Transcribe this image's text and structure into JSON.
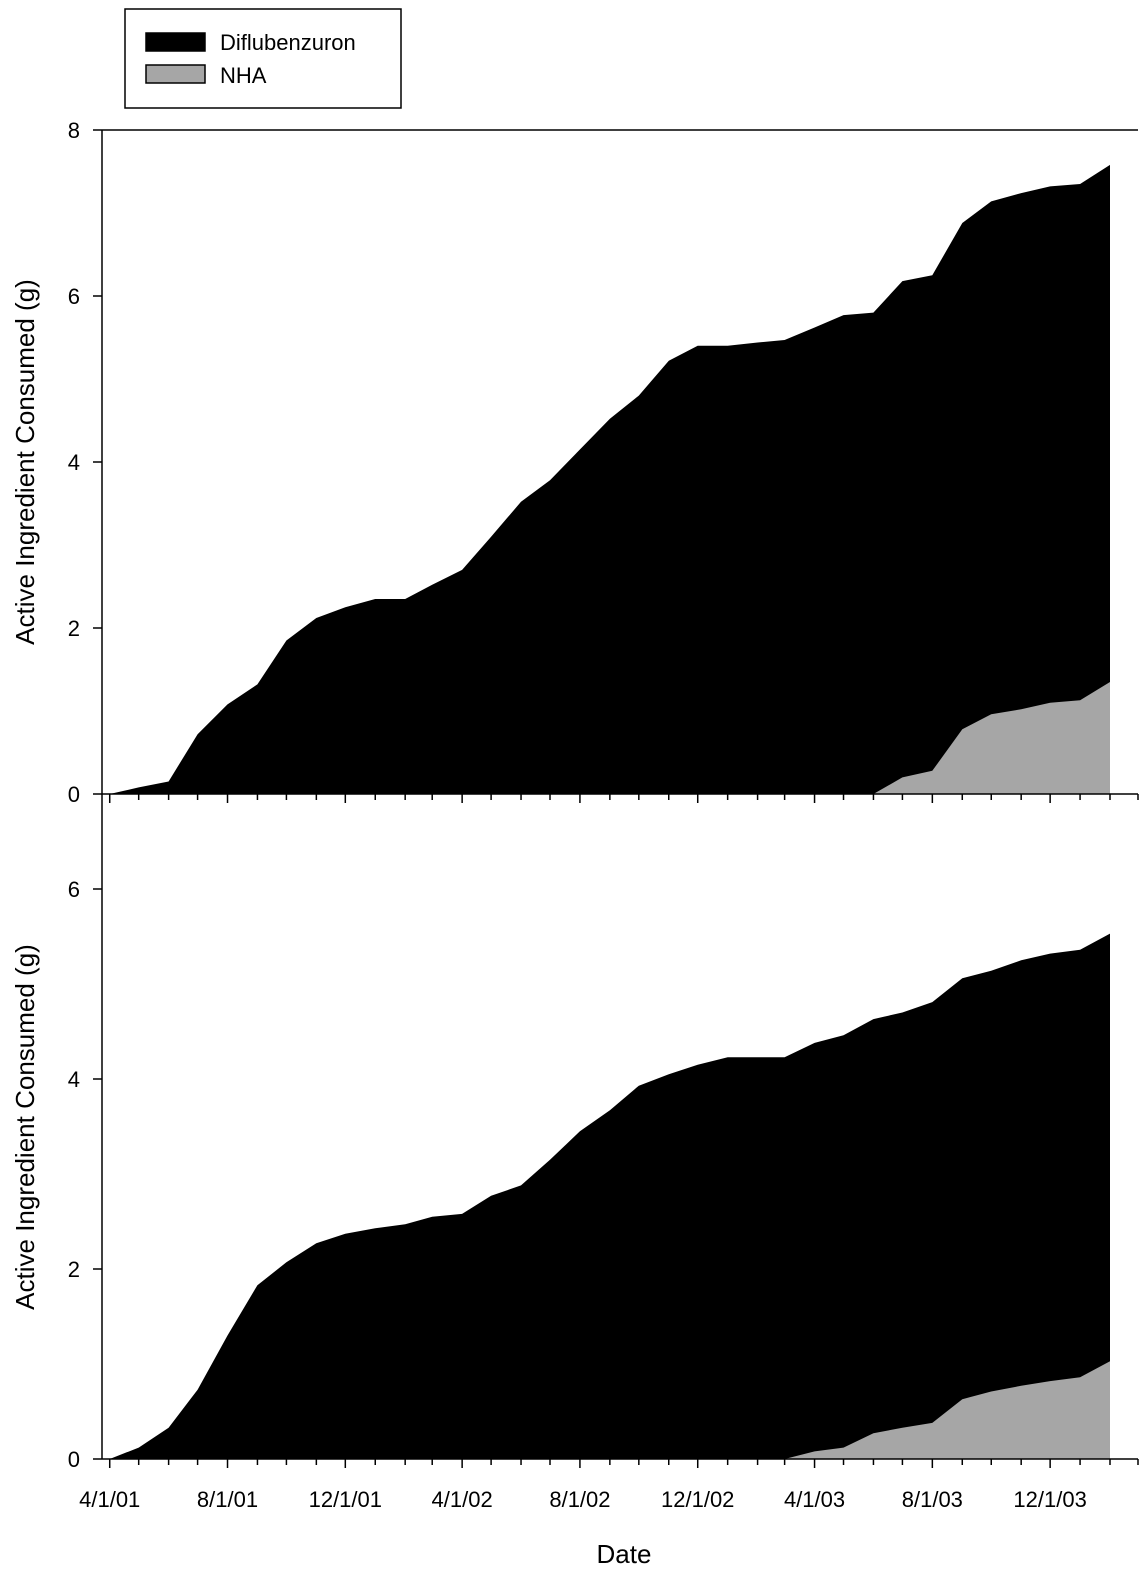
{
  "legend": {
    "items": [
      {
        "label": "Diflubenzuron",
        "color": "#000000"
      },
      {
        "label": "NHA",
        "color": "#a6a6a6"
      }
    ],
    "placement": "top-left"
  },
  "x_axis": {
    "label": "Date",
    "tick_labels": [
      "4/1/01",
      "8/1/01",
      "12/1/01",
      "4/1/02",
      "8/1/02",
      "12/1/02",
      "4/1/03",
      "8/1/03",
      "12/1/03"
    ]
  },
  "chart_data": [
    {
      "type": "area",
      "stacking": "stacked",
      "ylabel": "Active Ingredient Consumed (g)",
      "xlabel": "",
      "xlim": [
        "2001-03-24",
        "2004-03-01"
      ],
      "ylim": [
        0,
        8
      ],
      "yticks": [
        "0",
        "2",
        "4",
        "6",
        "8"
      ],
      "grid": false,
      "series": [
        {
          "name": "Diflubenzuron",
          "color": "#000000",
          "x": [
            "2001-04-01",
            "2001-05-01",
            "2001-06-01",
            "2001-07-01",
            "2001-08-01",
            "2001-09-01",
            "2001-10-01",
            "2001-11-01",
            "2001-12-01",
            "2002-01-01",
            "2002-02-01",
            "2002-03-01",
            "2002-04-01",
            "2002-05-01",
            "2002-06-01",
            "2002-07-01",
            "2002-08-01",
            "2002-09-01",
            "2002-10-01",
            "2002-11-01",
            "2002-12-01",
            "2003-01-01",
            "2003-02-01",
            "2003-03-01",
            "2003-04-01",
            "2003-05-01",
            "2003-06-01",
            "2003-07-01",
            "2003-08-01",
            "2003-09-01",
            "2003-10-01",
            "2003-11-01",
            "2003-12-01",
            "2004-01-01",
            "2004-02-01"
          ],
          "values": [
            0.0,
            0.08,
            0.15,
            0.72,
            1.08,
            1.32,
            1.85,
            2.12,
            2.25,
            2.35,
            2.35,
            2.52,
            2.7,
            3.1,
            3.52,
            3.78,
            4.15,
            4.52,
            4.8,
            5.22,
            5.4,
            5.4,
            5.44,
            5.47,
            5.62,
            5.77,
            5.8,
            5.98,
            5.97,
            6.1,
            6.18,
            6.22,
            6.22,
            6.22,
            6.23
          ]
        },
        {
          "name": "NHA",
          "color": "#a6a6a6",
          "x": [
            "2003-06-01",
            "2003-07-01",
            "2003-08-01",
            "2003-09-01",
            "2003-10-01",
            "2003-11-01",
            "2003-12-01",
            "2004-01-01",
            "2004-02-01"
          ],
          "values": [
            0.0,
            0.2,
            0.28,
            0.78,
            0.96,
            1.02,
            1.1,
            1.13,
            1.35
          ]
        }
      ]
    },
    {
      "type": "area",
      "stacking": "stacked",
      "ylabel": "Active Ingredient Consumed (g)",
      "xlabel": "Date",
      "xlim": [
        "2001-03-24",
        "2004-03-01"
      ],
      "ylim": [
        0,
        7
      ],
      "yticks": [
        "0",
        "2",
        "4",
        "6"
      ],
      "grid": false,
      "series": [
        {
          "name": "Diflubenzuron",
          "color": "#000000",
          "x": [
            "2001-04-01",
            "2001-05-01",
            "2001-06-01",
            "2001-07-01",
            "2001-08-01",
            "2001-09-01",
            "2001-10-01",
            "2001-11-01",
            "2001-12-01",
            "2002-01-01",
            "2002-02-01",
            "2002-03-01",
            "2002-04-01",
            "2002-05-01",
            "2002-06-01",
            "2002-07-01",
            "2002-08-01",
            "2002-09-01",
            "2002-10-01",
            "2002-11-01",
            "2002-12-01",
            "2003-01-01",
            "2003-02-01",
            "2003-03-01",
            "2003-04-01",
            "2003-05-01",
            "2003-06-01",
            "2003-07-01",
            "2003-08-01",
            "2003-09-01",
            "2003-10-01",
            "2003-11-01",
            "2003-12-01",
            "2004-01-01",
            "2004-02-01"
          ],
          "values": [
            0.0,
            0.12,
            0.33,
            0.73,
            1.3,
            1.83,
            2.07,
            2.27,
            2.37,
            2.43,
            2.47,
            2.55,
            2.58,
            2.77,
            2.88,
            3.15,
            3.45,
            3.67,
            3.93,
            4.05,
            4.15,
            4.23,
            4.23,
            4.23,
            4.3,
            4.34,
            4.36,
            4.37,
            4.43,
            4.43,
            4.43,
            4.48,
            4.5,
            4.5,
            4.5
          ]
        },
        {
          "name": "NHA",
          "color": "#a6a6a6",
          "x": [
            "2003-03-01",
            "2003-04-01",
            "2003-05-01",
            "2003-06-01",
            "2003-07-01",
            "2003-08-01",
            "2003-09-01",
            "2003-10-01",
            "2003-11-01",
            "2003-12-01",
            "2004-01-01",
            "2004-02-01"
          ],
          "values": [
            0.0,
            0.08,
            0.12,
            0.27,
            0.33,
            0.38,
            0.63,
            0.71,
            0.77,
            0.82,
            0.86,
            1.03
          ]
        }
      ]
    }
  ]
}
